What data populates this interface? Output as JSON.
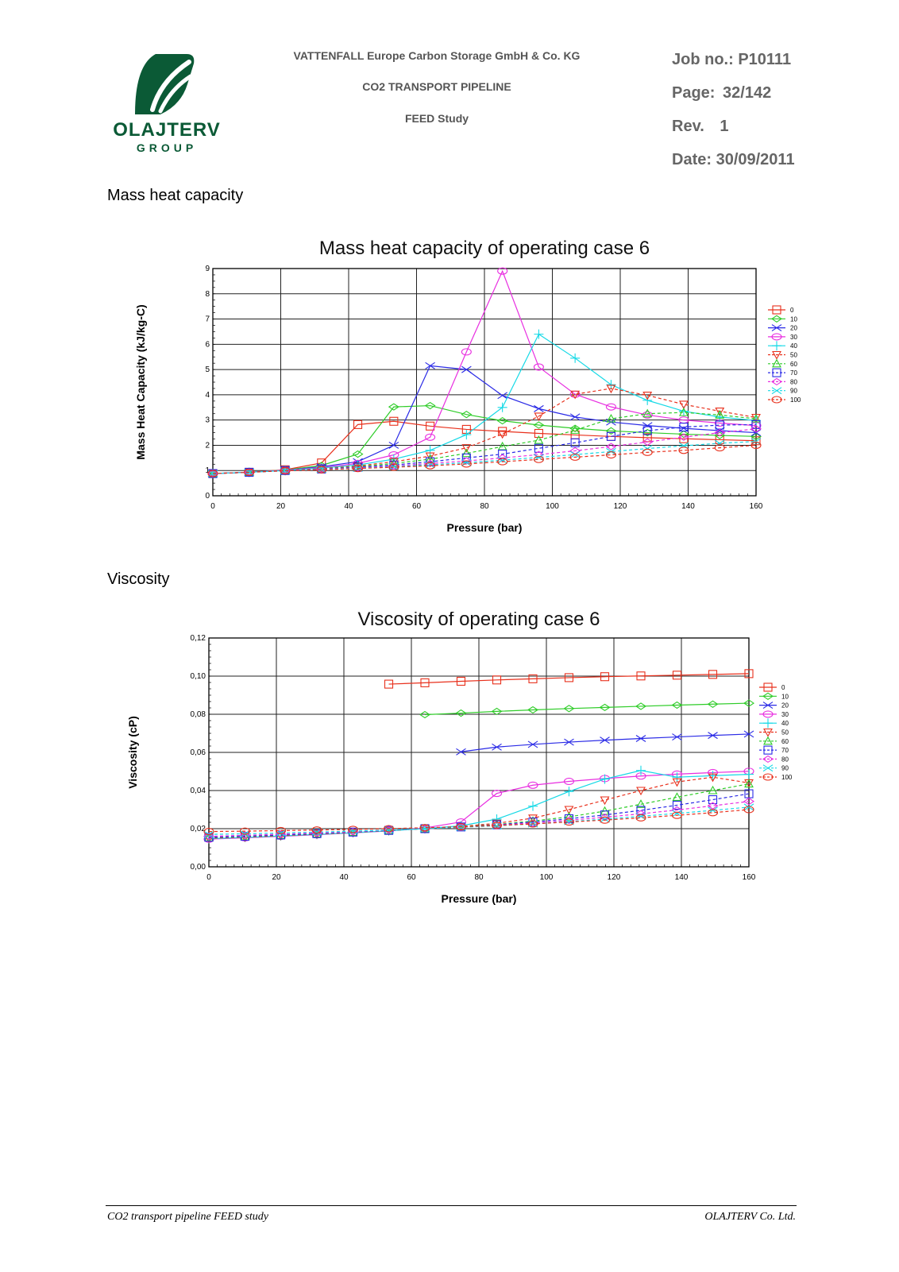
{
  "header": {
    "company_line1": "OLAJTERV",
    "company_line2": "GROUP",
    "client": "VATTENFALL Europe Carbon Storage GmbH & Co. KG",
    "project": "CO2 TRANSPORT PIPELINE",
    "study": "FEED Study",
    "job_label": "Job no.:",
    "job_value": "P10111",
    "page_label": "Page:",
    "page_value": "32/142",
    "rev_label": "Rev.",
    "rev_value": "1",
    "date_label": "Date:",
    "date_value": "30/09/2011",
    "brand_color": "#0b5a36"
  },
  "sections": {
    "heat": "Mass heat capacity",
    "viscosity": "Viscosity"
  },
  "footer": {
    "left": "CO2 transport pipeline FEED study",
    "right": "OLAJTERV Co. Ltd."
  },
  "chart_data": [
    {
      "type": "line",
      "title": "Mass heat capacity of operating case 6",
      "xlabel": "Pressure (bar)",
      "ylabel": "Mass Heat Capacity (kJ/kg-C)",
      "xlim": [
        0,
        160
      ],
      "ylim": [
        0,
        9
      ],
      "xticks": [
        0,
        20,
        40,
        60,
        80,
        100,
        120,
        140,
        160
      ],
      "yticks": [
        0,
        1,
        2,
        3,
        4,
        5,
        6,
        7,
        8,
        9
      ],
      "tick_decimals": 0,
      "grid": true,
      "legend": "right",
      "series": [
        {
          "name": "0",
          "color": "#e8301c",
          "marker": "square",
          "dashed": false,
          "x": [
            0,
            10.7,
            21.3,
            32,
            42.7,
            53.3,
            64,
            74.7,
            85.3,
            96,
            106.7,
            117.3,
            128,
            138.7,
            149.3,
            160
          ],
          "y": [
            0.88,
            0.93,
            1.03,
            1.3,
            2.82,
            2.95,
            2.76,
            2.63,
            2.55,
            2.47,
            2.41,
            2.35,
            2.3,
            2.26,
            2.22,
            2.18
          ]
        },
        {
          "name": "10",
          "color": "#2ecc28",
          "marker": "diamond",
          "dashed": false,
          "x": [
            0,
            10.7,
            21.3,
            32,
            42.7,
            53.3,
            64,
            74.7,
            85.3,
            96,
            106.7,
            117.3,
            128,
            138.7,
            149.3,
            160
          ],
          "y": [
            0.88,
            0.93,
            1.02,
            1.2,
            1.65,
            3.52,
            3.57,
            3.22,
            2.97,
            2.8,
            2.67,
            2.57,
            2.5,
            2.44,
            2.39,
            2.35
          ]
        },
        {
          "name": "20",
          "color": "#2a2ae6",
          "marker": "x",
          "dashed": false,
          "x": [
            0,
            10.7,
            21.3,
            32,
            42.7,
            53.3,
            64,
            74.7,
            85.3,
            96,
            106.7,
            117.3,
            128,
            138.7,
            149.3,
            160
          ],
          "y": [
            0.88,
            0.93,
            1.01,
            1.15,
            1.35,
            2.0,
            5.15,
            5.0,
            3.97,
            3.45,
            3.12,
            2.92,
            2.78,
            2.67,
            2.58,
            2.5
          ]
        },
        {
          "name": "30",
          "color": "#e82ee0",
          "marker": "circle",
          "dashed": false,
          "x": [
            0,
            10.7,
            21.3,
            32,
            42.7,
            53.3,
            64,
            74.7,
            85.3,
            96,
            106.7,
            117.3,
            128,
            138.7,
            149.3,
            160
          ],
          "y": [
            0.88,
            0.93,
            1.01,
            1.12,
            1.28,
            1.62,
            2.32,
            5.7,
            8.9,
            5.1,
            4.02,
            3.52,
            3.2,
            3.0,
            2.88,
            2.78
          ]
        },
        {
          "name": "40",
          "color": "#14d9e6",
          "marker": "plus",
          "dashed": false,
          "x": [
            0,
            10.7,
            21.3,
            32,
            42.7,
            53.3,
            64,
            74.7,
            85.3,
            96,
            106.7,
            117.3,
            128,
            138.7,
            149.3,
            160
          ],
          "y": [
            0.88,
            0.93,
            1.0,
            1.1,
            1.22,
            1.45,
            1.8,
            2.42,
            3.5,
            6.4,
            5.45,
            4.4,
            3.78,
            3.35,
            3.12,
            2.98
          ]
        },
        {
          "name": "50",
          "color": "#e8301c",
          "marker": "triangle-down",
          "dashed": true,
          "x": [
            0,
            10.7,
            21.3,
            32,
            42.7,
            53.3,
            64,
            74.7,
            85.3,
            96,
            106.7,
            117.3,
            128,
            138.7,
            149.3,
            160
          ],
          "y": [
            0.88,
            0.93,
            1.0,
            1.08,
            1.18,
            1.35,
            1.57,
            1.9,
            2.45,
            3.15,
            4.02,
            4.25,
            3.98,
            3.62,
            3.35,
            3.1
          ]
        },
        {
          "name": "60",
          "color": "#2ecc28",
          "marker": "triangle",
          "dashed": true,
          "x": [
            0,
            10.7,
            21.3,
            32,
            42.7,
            53.3,
            64,
            74.7,
            85.3,
            96,
            106.7,
            117.3,
            128,
            138.7,
            149.3,
            160
          ],
          "y": [
            0.88,
            0.93,
            1.0,
            1.07,
            1.15,
            1.28,
            1.45,
            1.68,
            1.95,
            2.2,
            2.6,
            3.05,
            3.25,
            3.3,
            3.2,
            3.05
          ]
        },
        {
          "name": "70",
          "color": "#2a2ae6",
          "marker": "square",
          "dashed": true,
          "x": [
            0,
            10.7,
            21.3,
            32,
            42.7,
            53.3,
            64,
            74.7,
            85.3,
            96,
            106.7,
            117.3,
            128,
            138.7,
            149.3,
            160
          ],
          "y": [
            0.88,
            0.93,
            1.0,
            1.06,
            1.13,
            1.22,
            1.35,
            1.5,
            1.65,
            1.88,
            2.1,
            2.35,
            2.58,
            2.72,
            2.8,
            2.82
          ]
        },
        {
          "name": "80",
          "color": "#e82ee0",
          "marker": "diamond",
          "dashed": true,
          "x": [
            0,
            10.7,
            21.3,
            32,
            42.7,
            53.3,
            64,
            74.7,
            85.3,
            96,
            106.7,
            117.3,
            128,
            138.7,
            149.3,
            160
          ],
          "y": [
            0.88,
            0.93,
            1.0,
            1.05,
            1.11,
            1.18,
            1.28,
            1.38,
            1.5,
            1.63,
            1.78,
            1.95,
            2.13,
            2.32,
            2.5,
            2.65
          ]
        },
        {
          "name": "90",
          "color": "#14d9e6",
          "marker": "x",
          "dashed": true,
          "x": [
            0,
            10.7,
            21.3,
            32,
            42.7,
            53.3,
            64,
            74.7,
            85.3,
            96,
            106.7,
            117.3,
            128,
            138.7,
            149.3,
            160
          ],
          "y": [
            0.88,
            0.93,
            0.99,
            1.04,
            1.09,
            1.15,
            1.23,
            1.31,
            1.41,
            1.52,
            1.63,
            1.75,
            1.87,
            1.98,
            2.08,
            2.15
          ]
        },
        {
          "name": "100",
          "color": "#e8301c",
          "marker": "circle",
          "dashed": true,
          "x": [
            0,
            10.7,
            21.3,
            32,
            42.7,
            53.3,
            64,
            74.7,
            85.3,
            96,
            106.7,
            117.3,
            128,
            138.7,
            149.3,
            160
          ],
          "y": [
            0.88,
            0.93,
            0.99,
            1.03,
            1.08,
            1.13,
            1.19,
            1.26,
            1.35,
            1.44,
            1.53,
            1.62,
            1.72,
            1.8,
            1.9,
            2.0
          ]
        }
      ]
    },
    {
      "type": "line",
      "title": "Viscosity of operating case 6",
      "xlabel": "Pressure (bar)",
      "ylabel": "Viscosity (cP)",
      "xlim": [
        0,
        160
      ],
      "ylim": [
        0,
        0.12
      ],
      "xticks": [
        0,
        20,
        40,
        60,
        80,
        100,
        120,
        140,
        160
      ],
      "yticks": [
        0,
        0.02,
        0.04,
        0.06,
        0.08,
        0.1,
        0.12
      ],
      "tick_decimals": 2,
      "decimal_sep": ",",
      "grid": true,
      "legend": "right",
      "series": [
        {
          "name": "0",
          "color": "#e8301c",
          "marker": "square",
          "dashed": false,
          "x": [
            0,
            10.7,
            21.3,
            32,
            42.7,
            53.3,
            64,
            74.7,
            85.3,
            96,
            106.7,
            117.3,
            128,
            138.7,
            149.3,
            160
          ],
          "y": [
            null,
            null,
            null,
            null,
            null,
            0.0958,
            0.0965,
            0.0973,
            0.098,
            0.0986,
            0.0992,
            0.0997,
            0.1001,
            0.1005,
            0.1009,
            0.1013
          ]
        },
        {
          "name": "10",
          "color": "#2ecc28",
          "marker": "diamond",
          "dashed": false,
          "x": [
            0,
            10.7,
            21.3,
            32,
            42.7,
            53.3,
            64,
            74.7,
            85.3,
            96,
            106.7,
            117.3,
            128,
            138.7,
            149.3,
            160
          ],
          "y": [
            null,
            null,
            null,
            null,
            null,
            null,
            0.0798,
            0.0806,
            0.0815,
            0.0823,
            0.083,
            0.0836,
            0.0842,
            0.0848,
            0.0853,
            0.0858
          ]
        },
        {
          "name": "20",
          "color": "#2a2ae6",
          "marker": "x",
          "dashed": false,
          "x": [
            0,
            10.7,
            21.3,
            32,
            42.7,
            53.3,
            64,
            74.7,
            85.3,
            96,
            106.7,
            117.3,
            128,
            138.7,
            149.3,
            160
          ],
          "y": [
            null,
            null,
            null,
            null,
            null,
            null,
            null,
            0.0603,
            0.0628,
            0.0642,
            0.0654,
            0.0664,
            0.0673,
            0.0681,
            0.0689,
            0.0696
          ]
        },
        {
          "name": "30",
          "color": "#e82ee0",
          "marker": "circle",
          "dashed": false,
          "x": [
            0,
            10.7,
            21.3,
            32,
            42.7,
            53.3,
            64,
            74.7,
            85.3,
            96,
            106.7,
            117.3,
            128,
            138.7,
            149.3,
            160
          ],
          "y": [
            0.0145,
            0.0152,
            0.016,
            0.0168,
            0.0178,
            0.0188,
            0.0204,
            0.0235,
            0.0385,
            0.0428,
            0.0448,
            0.0463,
            0.0476,
            0.0486,
            0.0494,
            0.0501
          ]
        },
        {
          "name": "40",
          "color": "#14d9e6",
          "marker": "plus",
          "dashed": false,
          "x": [
            0,
            10.7,
            21.3,
            32,
            42.7,
            53.3,
            64,
            74.7,
            85.3,
            96,
            106.7,
            117.3,
            128,
            138.7,
            149.3,
            160
          ],
          "y": [
            0.0148,
            0.0154,
            0.0162,
            0.017,
            0.0179,
            0.0189,
            0.02,
            0.0215,
            0.025,
            0.0318,
            0.0395,
            0.046,
            0.0505,
            0.047,
            0.0478,
            0.0485
          ]
        },
        {
          "name": "50",
          "color": "#e8301c",
          "marker": "triangle-down",
          "dashed": true,
          "x": [
            0,
            10.7,
            21.3,
            32,
            42.7,
            53.3,
            64,
            74.7,
            85.3,
            96,
            106.7,
            117.3,
            128,
            138.7,
            149.3,
            160
          ],
          "y": [
            0.015,
            0.0156,
            0.0163,
            0.0171,
            0.018,
            0.019,
            0.02,
            0.0212,
            0.0228,
            0.0255,
            0.03,
            0.035,
            0.04,
            0.0445,
            0.047,
            0.044
          ]
        },
        {
          "name": "60",
          "color": "#2ecc28",
          "marker": "triangle",
          "dashed": true,
          "x": [
            0,
            10.7,
            21.3,
            32,
            42.7,
            53.3,
            64,
            74.7,
            85.3,
            96,
            106.7,
            117.3,
            128,
            138.7,
            149.3,
            160
          ],
          "y": [
            0.0153,
            0.0158,
            0.0165,
            0.0172,
            0.0181,
            0.019,
            0.02,
            0.021,
            0.0222,
            0.024,
            0.0262,
            0.0292,
            0.0328,
            0.0365,
            0.04,
            0.0435
          ]
        },
        {
          "name": "70",
          "color": "#2a2ae6",
          "marker": "square",
          "dashed": true,
          "x": [
            0,
            10.7,
            21.3,
            32,
            42.7,
            53.3,
            64,
            74.7,
            85.3,
            96,
            106.7,
            117.3,
            128,
            138.7,
            149.3,
            160
          ],
          "y": [
            0.0155,
            0.016,
            0.0167,
            0.0174,
            0.0182,
            0.0191,
            0.02,
            0.0209,
            0.022,
            0.0235,
            0.0252,
            0.0272,
            0.0296,
            0.0323,
            0.0352,
            0.0383
          ]
        },
        {
          "name": "80",
          "color": "#e82ee0",
          "marker": "diamond",
          "dashed": true,
          "x": [
            0,
            10.7,
            21.3,
            32,
            42.7,
            53.3,
            64,
            74.7,
            85.3,
            96,
            106.7,
            117.3,
            128,
            138.7,
            149.3,
            160
          ],
          "y": [
            0.016,
            0.0165,
            0.0171,
            0.0177,
            0.0184,
            0.0192,
            0.02,
            0.0208,
            0.0218,
            0.023,
            0.0244,
            0.026,
            0.0278,
            0.0298,
            0.032,
            0.0343
          ]
        },
        {
          "name": "90",
          "color": "#14d9e6",
          "marker": "x",
          "dashed": true,
          "x": [
            0,
            10.7,
            21.3,
            32,
            42.7,
            53.3,
            64,
            74.7,
            85.3,
            96,
            106.7,
            117.3,
            128,
            138.7,
            149.3,
            160
          ],
          "y": [
            0.017,
            0.0173,
            0.0177,
            0.0182,
            0.0187,
            0.0193,
            0.02,
            0.0207,
            0.0215,
            0.0225,
            0.0237,
            0.025,
            0.0265,
            0.028,
            0.0296,
            0.0313
          ]
        },
        {
          "name": "100",
          "color": "#e8301c",
          "marker": "circle",
          "dashed": true,
          "x": [
            0,
            10.7,
            21.3,
            32,
            42.7,
            53.3,
            64,
            74.7,
            85.3,
            96,
            106.7,
            117.3,
            128,
            138.7,
            149.3,
            160
          ],
          "y": [
            0.0185,
            0.0187,
            0.019,
            0.0193,
            0.0196,
            0.02,
            0.0205,
            0.021,
            0.0217,
            0.0225,
            0.0235,
            0.0245,
            0.0257,
            0.027,
            0.0284,
            0.03
          ]
        }
      ]
    }
  ]
}
